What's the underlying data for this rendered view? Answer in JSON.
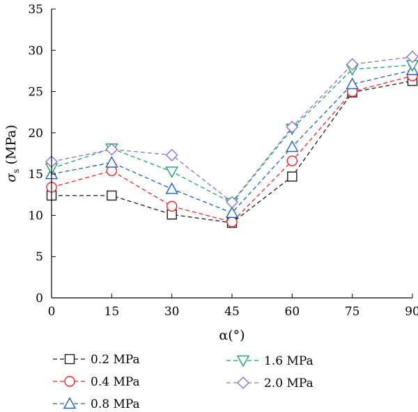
{
  "chart_data": {
    "type": "line",
    "x": [
      0,
      15,
      30,
      45,
      60,
      75,
      90
    ],
    "xlabel": "α(°)",
    "ylabel_main": "σ",
    "ylabel_sub": "s",
    "ylabel_unit": "(MPa)",
    "xlim": [
      0,
      90
    ],
    "ylim": [
      0,
      35
    ],
    "xticks": [
      "0",
      "15",
      "30",
      "45",
      "60",
      "75",
      "90"
    ],
    "yticks": [
      "0",
      "5",
      "10",
      "15",
      "20",
      "25",
      "30",
      "35"
    ],
    "grid": false,
    "legend_position": "bottom",
    "series": [
      {
        "name": "0.2 MPa",
        "color": "#1a1a1a",
        "marker": "square",
        "values": [
          12.4,
          12.4,
          10.1,
          9.1,
          14.7,
          24.9,
          26.3
        ]
      },
      {
        "name": "0.4 MPa",
        "color": "#e8262b",
        "marker": "circle",
        "values": [
          13.4,
          15.4,
          11.1,
          9.2,
          16.6,
          25.0,
          26.9
        ]
      },
      {
        "name": "0.8 MPa",
        "color": "#1f5fbf",
        "marker": "triangle-up",
        "values": [
          15.0,
          16.4,
          13.2,
          10.3,
          18.3,
          25.9,
          27.6
        ]
      },
      {
        "name": "1.6 MPa",
        "color": "#1fa36b",
        "marker": "triangle-down",
        "values": [
          15.7,
          18.1,
          15.3,
          11.5,
          20.5,
          27.7,
          28.2
        ]
      },
      {
        "name": "2.0 MPa",
        "color": "#8f72c9",
        "marker": "diamond",
        "values": [
          16.5,
          18.0,
          17.3,
          11.6,
          20.7,
          28.3,
          29.2
        ]
      }
    ]
  }
}
